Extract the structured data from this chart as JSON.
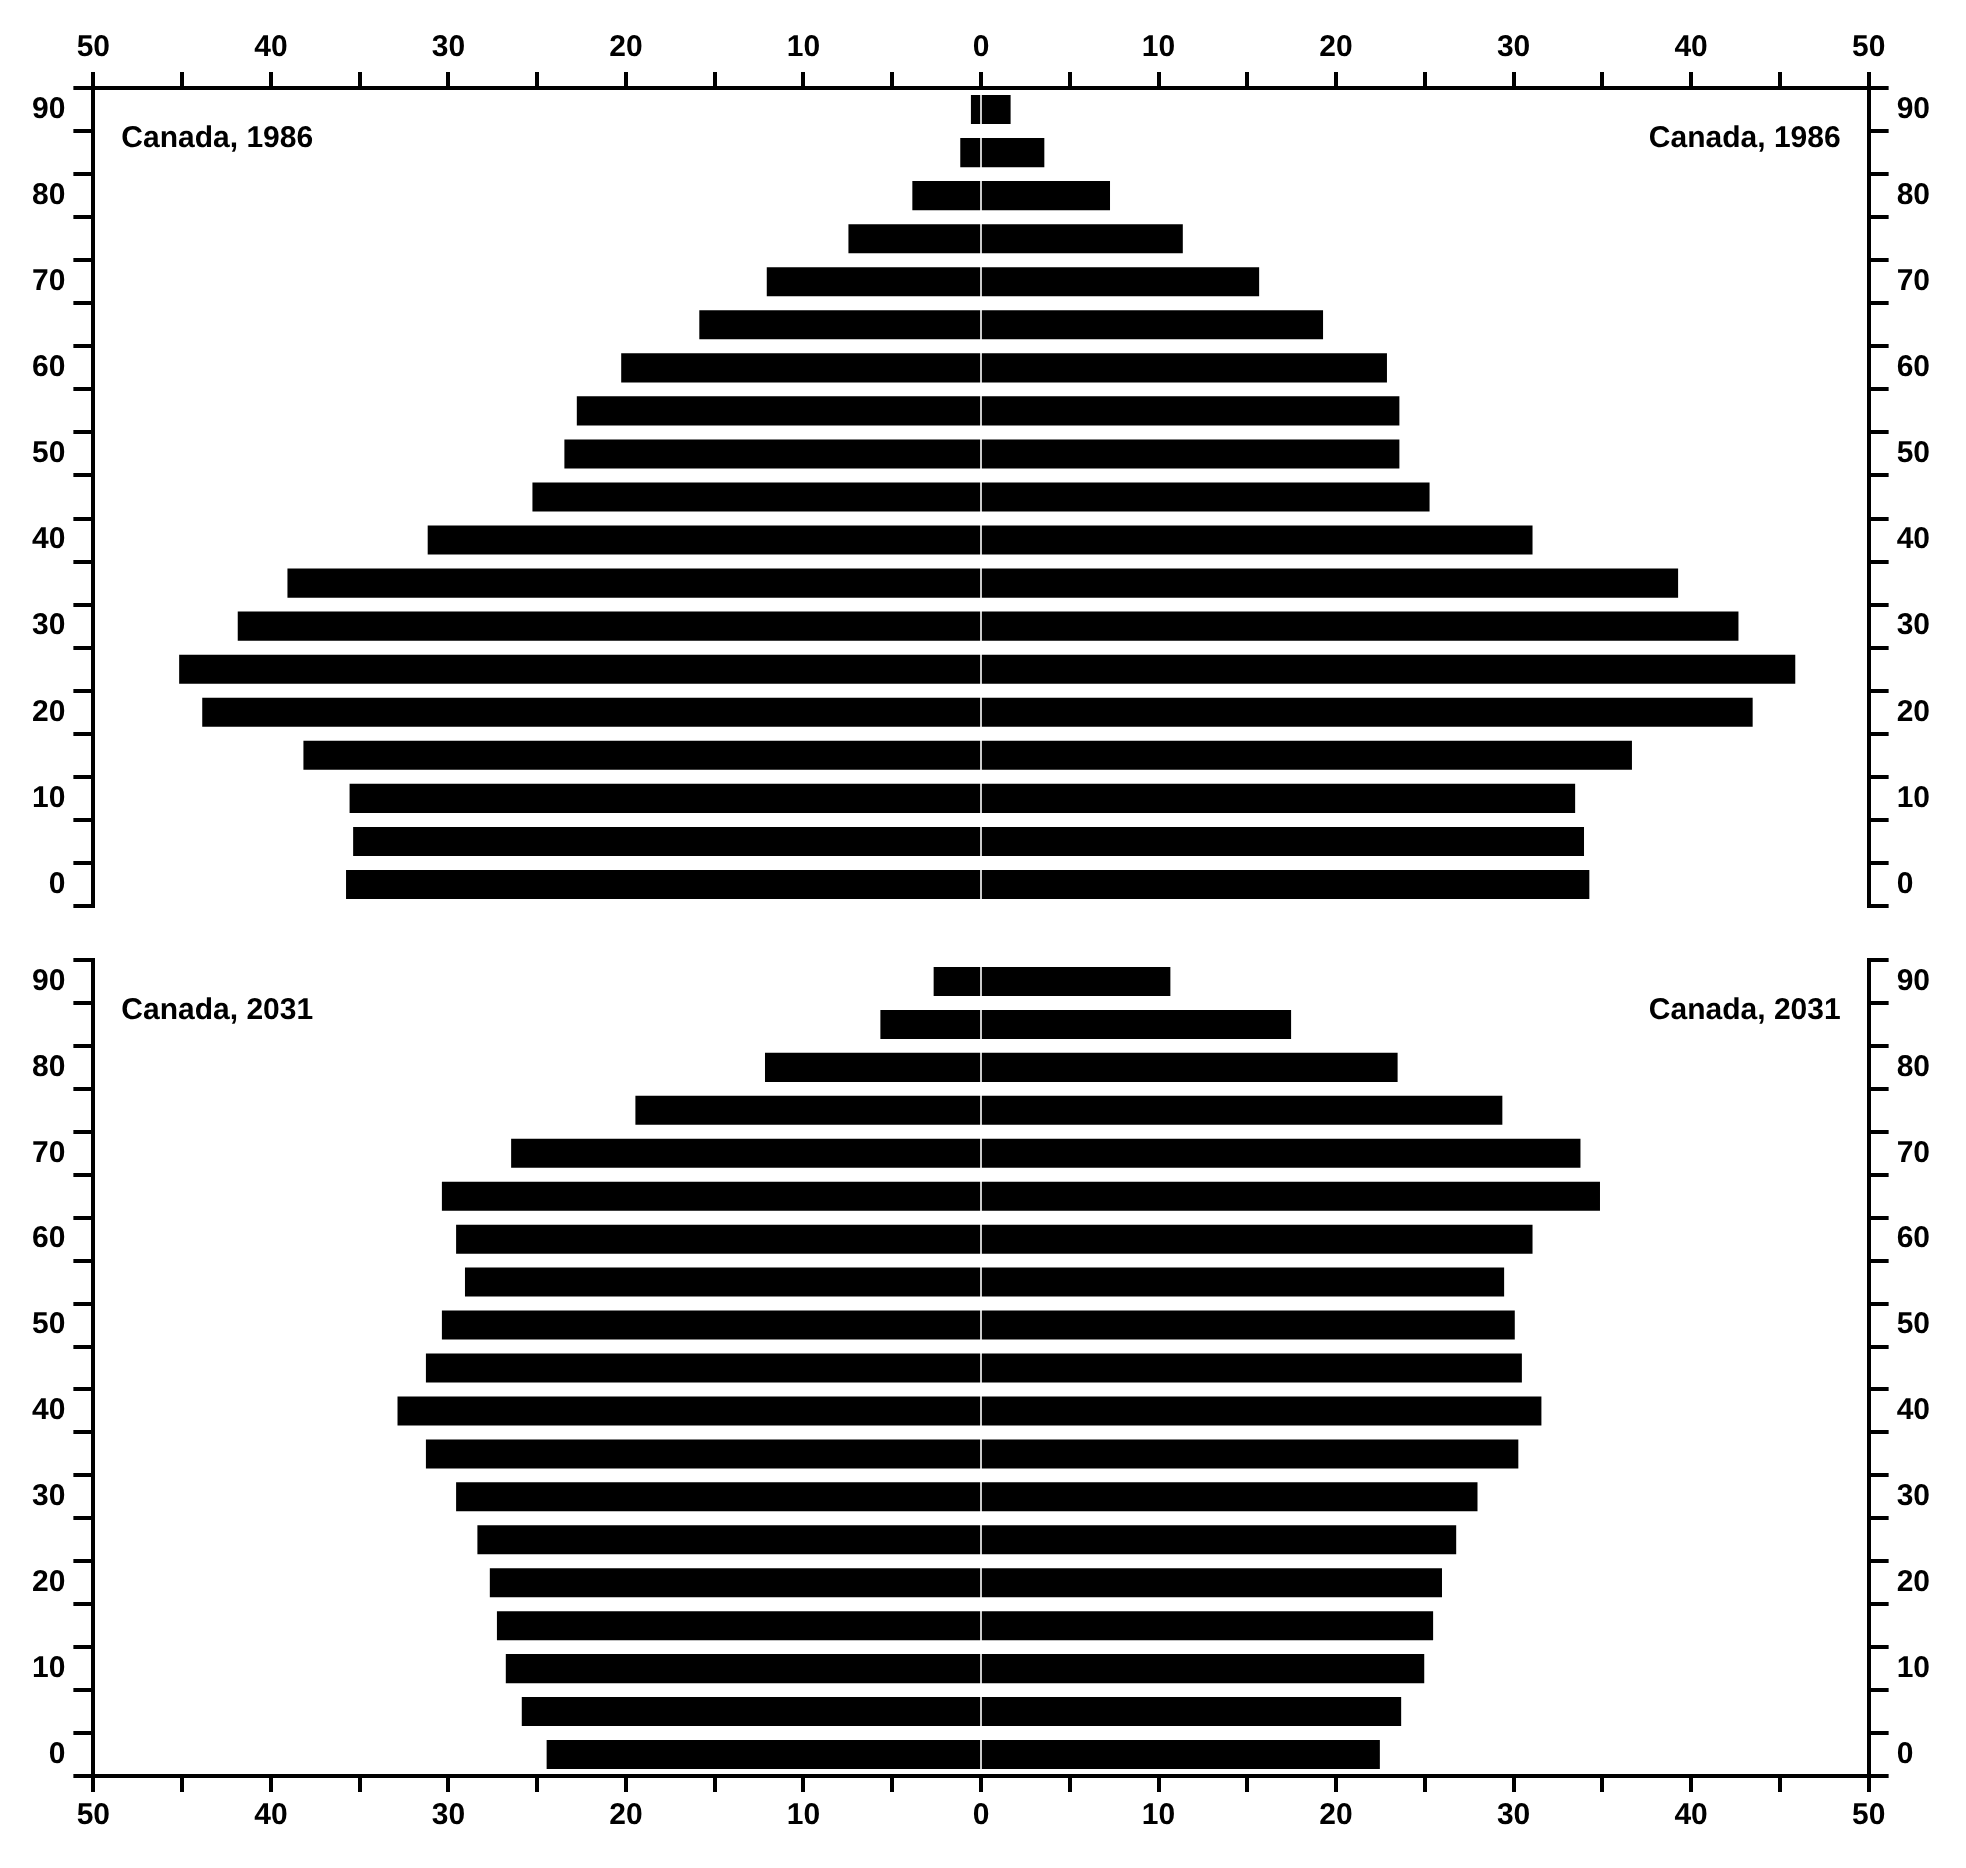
{
  "chart_data": [
    {
      "type": "bar",
      "orientation": "horizontal",
      "stacked": true,
      "grid": false,
      "legend": false,
      "categories": [
        "90",
        null,
        "80",
        null,
        "70",
        null,
        "60",
        null,
        "50",
        null,
        "40",
        null,
        "30",
        null,
        "20",
        null,
        "10",
        null,
        "0"
      ],
      "series": [
        {
          "color": "#000000",
          "values": [
            -0.5,
            -1.1,
            -3.8,
            -7.4,
            -12.0,
            -15.8,
            -20.2,
            -22.7,
            -23.4,
            -25.2,
            -31.1,
            -39.0,
            -41.8,
            -45.1,
            -43.8,
            -38.1,
            -35.5,
            -35.3,
            -35.7
          ]
        },
        {
          "color": "#000000",
          "values": [
            1.6,
            3.5,
            7.2,
            11.3,
            15.6,
            19.2,
            22.8,
            23.5,
            23.5,
            25.2,
            31.0,
            39.2,
            42.6,
            45.8,
            43.4,
            36.6,
            33.4,
            33.9,
            34.2
          ]
        }
      ],
      "xlim": [
        -50,
        50
      ],
      "xticks": [
        {
          "value": -50,
          "label": "50"
        },
        {
          "value": -45,
          "label": null
        },
        {
          "value": -40,
          "label": "40"
        },
        {
          "value": -35,
          "label": null
        },
        {
          "value": -30,
          "label": "30"
        },
        {
          "value": -25,
          "label": null
        },
        {
          "value": -20,
          "label": "20"
        },
        {
          "value": -15,
          "label": null
        },
        {
          "value": -10,
          "label": "10"
        },
        {
          "value": -5,
          "label": null
        },
        0,
        {
          "value": 5,
          "label": null
        },
        10,
        {
          "value": 15,
          "label": null
        },
        20,
        {
          "value": 25,
          "label": null
        },
        30,
        {
          "value": 35,
          "label": null
        },
        40,
        {
          "value": 45,
          "label": null
        },
        50
      ],
      "annotations": [
        "Canada, 1986",
        "Canada, 1986"
      ]
    },
    {
      "type": "bar",
      "orientation": "horizontal",
      "stacked": true,
      "grid": false,
      "legend": false,
      "categories": [
        "90",
        null,
        "80",
        null,
        "70",
        null,
        "60",
        null,
        "50",
        null,
        "40",
        null,
        "30",
        null,
        "20",
        null,
        "10",
        null,
        "0"
      ],
      "series": [
        {
          "color": "#000000",
          "values": [
            -2.6,
            -5.6,
            -12.1,
            -19.4,
            -26.4,
            -30.3,
            -29.5,
            -29.0,
            -30.3,
            -31.2,
            -32.8,
            -31.2,
            -29.5,
            -28.3,
            -27.6,
            -27.2,
            -26.7,
            -25.8,
            -24.4
          ]
        },
        {
          "color": "#000000",
          "values": [
            10.6,
            17.4,
            23.4,
            29.3,
            33.7,
            34.8,
            31.0,
            29.4,
            30.0,
            30.4,
            31.5,
            30.2,
            27.9,
            26.7,
            25.9,
            25.4,
            24.9,
            23.6,
            22.4
          ]
        }
      ],
      "xlim": [
        -50,
        50
      ],
      "xticks": [
        {
          "value": -50,
          "label": "50"
        },
        {
          "value": -45,
          "label": null
        },
        {
          "value": -40,
          "label": "40"
        },
        {
          "value": -35,
          "label": null
        },
        {
          "value": -30,
          "label": "30"
        },
        {
          "value": -25,
          "label": null
        },
        {
          "value": -20,
          "label": "20"
        },
        {
          "value": -15,
          "label": null
        },
        {
          "value": -10,
          "label": "10"
        },
        {
          "value": -5,
          "label": null
        },
        0,
        {
          "value": 5,
          "label": null
        },
        10,
        {
          "value": 15,
          "label": null
        },
        20,
        {
          "value": 25,
          "label": null
        },
        30,
        {
          "value": 35,
          "label": null
        },
        40,
        {
          "value": 45,
          "label": null
        },
        50
      ],
      "annotations": [
        "Canada, 2031",
        "Canada, 2031"
      ]
    }
  ]
}
